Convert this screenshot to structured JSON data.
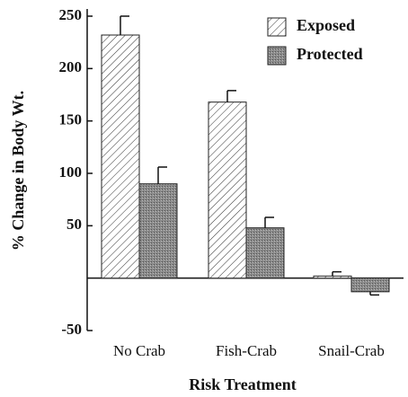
{
  "chart_data": {
    "type": "bar",
    "x_label": "Risk Treatment",
    "y_label": "% Change in Body Wt.",
    "categories": [
      "No Crab",
      "Fish-Crab",
      "Snail-Crab"
    ],
    "series": [
      {
        "name": "Exposed",
        "fill": "hatch",
        "color": "#ffffff",
        "values": [
          232,
          168,
          2
        ],
        "errors": [
          18,
          11,
          4
        ]
      },
      {
        "name": "Protected",
        "fill": "stipple",
        "color": "#8a8a8a",
        "values": [
          90,
          48,
          -13
        ],
        "errors": [
          16,
          10,
          3
        ]
      }
    ],
    "ylim": [
      -50,
      250
    ],
    "yticks": [
      -50,
      50,
      100,
      150,
      200,
      250
    ],
    "legend": "upper right"
  }
}
